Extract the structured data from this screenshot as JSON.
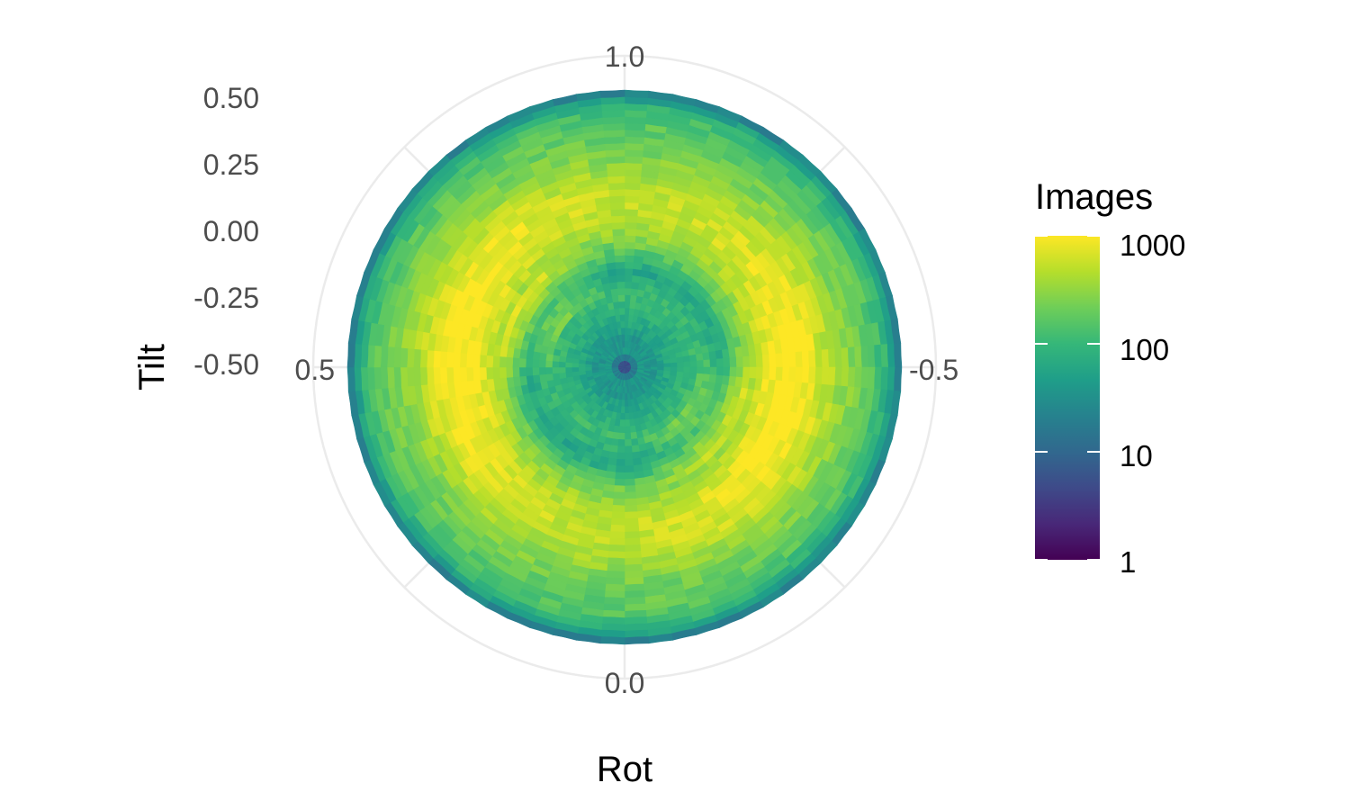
{
  "chart_data": {
    "type": "heatmap",
    "coordinate_system": "polar",
    "title": "",
    "xlabel": "Rot",
    "ylabel": "Tilt",
    "angular_axis": {
      "variable": "Rot",
      "range": [
        -1.0,
        1.0
      ],
      "direction": "counterclockwise",
      "tick_labels": [
        "1.0",
        "0.5",
        "0.0",
        "-0.5"
      ],
      "tick_values": [
        1.0,
        0.5,
        0.0,
        -0.5
      ]
    },
    "radial_axis": {
      "variable": "Tilt",
      "range": [
        -0.5,
        0.5
      ],
      "tick_labels": [
        "0.50",
        "0.25",
        "0.00",
        "-0.25",
        "-0.50"
      ],
      "tick_values": [
        0.5,
        0.25,
        0.0,
        -0.25,
        -0.5
      ]
    },
    "legend": {
      "title": "Images",
      "scale": "log10",
      "palette": "viridis",
      "range": [
        1,
        1000
      ],
      "labels": [
        "1000",
        "100",
        "10",
        "1"
      ],
      "values": [
        1000,
        100,
        10,
        1
      ],
      "position": "right"
    },
    "gradient_colors": [
      "#440154",
      "#482878",
      "#3e4a89",
      "#31688e",
      "#26828e",
      "#1f9e89",
      "#35b779",
      "#6ece58",
      "#b5de2b",
      "#fde725"
    ],
    "radial_profile": [
      {
        "tilt": -0.49,
        "images": 5
      },
      {
        "tilt": -0.45,
        "images": 40
      },
      {
        "tilt": -0.4,
        "images": 35
      },
      {
        "tilt": -0.35,
        "images": 60
      },
      {
        "tilt": -0.3,
        "images": 80
      },
      {
        "tilt": -0.25,
        "images": 110
      },
      {
        "tilt": -0.2,
        "images": 90
      },
      {
        "tilt": -0.15,
        "images": 60
      },
      {
        "tilt": -0.1,
        "images": 150
      },
      {
        "tilt": -0.05,
        "images": 300
      },
      {
        "tilt": 0.0,
        "images": 500
      },
      {
        "tilt": 0.05,
        "images": 700
      },
      {
        "tilt": 0.1,
        "images": 800
      },
      {
        "tilt": 0.15,
        "images": 700
      },
      {
        "tilt": 0.2,
        "images": 500
      },
      {
        "tilt": 0.25,
        "images": 350
      },
      {
        "tilt": 0.3,
        "images": 250
      },
      {
        "tilt": 0.35,
        "images": 200
      },
      {
        "tilt": 0.4,
        "images": 150
      },
      {
        "tilt": 0.45,
        "images": 80
      },
      {
        "tilt": 0.5,
        "images": 15
      }
    ]
  }
}
